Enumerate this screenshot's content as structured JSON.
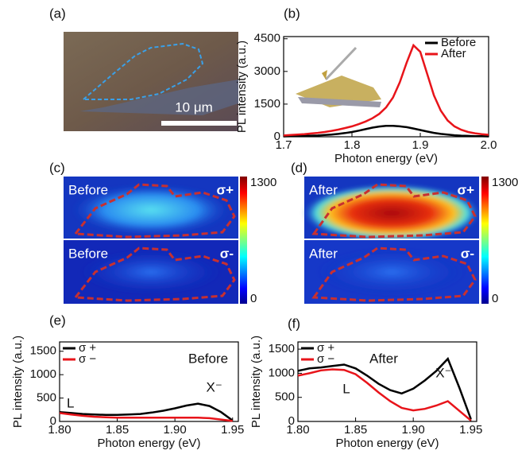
{
  "panel_labels": [
    "(a)",
    "(b)",
    "(c)",
    "(d)",
    "(e)",
    "(f)"
  ],
  "micrograph": {
    "scale_label": "10 μm"
  },
  "maps": [
    {
      "top_label": "Before",
      "top_pol": "σ+",
      "bottom_label": "Before",
      "bottom_pol": "σ-",
      "clim": [
        0,
        1300
      ],
      "cticks": [
        0,
        1300
      ]
    },
    {
      "top_label": "After",
      "top_pol": "σ+",
      "bottom_label": "After",
      "bottom_pol": "σ-",
      "clim": [
        0,
        1300
      ],
      "cticks": [
        0,
        1300
      ]
    }
  ],
  "chart_data": [
    {
      "type": "line",
      "xlabel": "Photon energy (eV)",
      "ylabel": "PL intensity (a.u.)",
      "legend": "upper right",
      "x": [
        1.7,
        1.71,
        1.72,
        1.73,
        1.74,
        1.75,
        1.76,
        1.77,
        1.78,
        1.79,
        1.8,
        1.81,
        1.82,
        1.83,
        1.84,
        1.85,
        1.86,
        1.87,
        1.88,
        1.89,
        1.9,
        1.91,
        1.92,
        1.93,
        1.94,
        1.95,
        1.96,
        1.97,
        1.98,
        1.99,
        2.0
      ],
      "series": [
        {
          "name": "Before",
          "color": "#000000",
          "values": [
            20,
            25,
            30,
            40,
            50,
            60,
            80,
            100,
            130,
            170,
            220,
            280,
            350,
            420,
            470,
            500,
            500,
            480,
            440,
            380,
            310,
            240,
            180,
            130,
            100,
            70,
            50,
            40,
            30,
            25,
            20
          ]
        },
        {
          "name": "After",
          "color": "#e8141a",
          "values": [
            60,
            80,
            100,
            120,
            150,
            180,
            220,
            270,
            330,
            400,
            480,
            580,
            700,
            850,
            1050,
            1350,
            1800,
            2500,
            3400,
            4200,
            3900,
            2900,
            1900,
            1200,
            750,
            480,
            320,
            220,
            160,
            120,
            90
          ]
        }
      ],
      "xlim": [
        1.7,
        2.0
      ],
      "xticks": [
        1.7,
        1.8,
        1.9,
        {
          "value": 2.0,
          "label": "2.0"
        }
      ],
      "ylim": [
        0,
        4600
      ],
      "yticks": [
        0,
        1500,
        3000,
        4500
      ]
    },
    {
      "type": "line",
      "xlabel": "Photon energy (eV)",
      "ylabel": "PL intensity (a.u.)",
      "legend": "upper left",
      "annotations": [
        "Before",
        "L",
        "X⁻"
      ],
      "x": [
        1.8,
        1.81,
        1.82,
        1.83,
        1.84,
        1.85,
        1.86,
        1.87,
        1.88,
        1.89,
        1.9,
        1.91,
        1.92,
        1.93,
        1.94,
        1.95
      ],
      "series": [
        {
          "name": "σ +",
          "color": "#000000",
          "values": [
            200,
            180,
            160,
            150,
            140,
            140,
            150,
            160,
            190,
            230,
            280,
            340,
            380,
            330,
            200,
            20
          ]
        },
        {
          "name": "σ −",
          "color": "#e8141a",
          "values": [
            180,
            150,
            120,
            100,
            90,
            80,
            80,
            80,
            80,
            80,
            80,
            80,
            80,
            70,
            40,
            10
          ]
        }
      ],
      "xlim": [
        1.8,
        1.955
      ],
      "xticks": [
        {
          "value": 1.8,
          "label": "1.80"
        },
        1.85,
        {
          "value": 1.9,
          "label": "1.90"
        },
        1.95
      ],
      "ylim": [
        0,
        1700
      ],
      "yticks": [
        0,
        500,
        1000,
        1500
      ]
    },
    {
      "type": "line",
      "xlabel": "Photon energy (eV)",
      "ylabel": "PL intensity (a.u.)",
      "legend": "upper left",
      "annotations": [
        "After",
        "L",
        "X⁻"
      ],
      "x": [
        1.8,
        1.81,
        1.82,
        1.83,
        1.84,
        1.85,
        1.86,
        1.87,
        1.88,
        1.89,
        1.9,
        1.91,
        1.92,
        1.93,
        1.94,
        1.95
      ],
      "series": [
        {
          "name": "σ +",
          "color": "#000000",
          "values": [
            1050,
            1100,
            1120,
            1150,
            1180,
            1100,
            950,
            780,
            650,
            580,
            680,
            850,
            1050,
            1300,
            700,
            50
          ]
        },
        {
          "name": "σ −",
          "color": "#e8141a",
          "values": [
            950,
            1000,
            1060,
            1080,
            1070,
            980,
            800,
            600,
            420,
            280,
            230,
            260,
            330,
            420,
            220,
            20
          ]
        }
      ],
      "xlim": [
        1.8,
        1.955
      ],
      "xticks": [
        {
          "value": 1.8,
          "label": "1.80"
        },
        1.85,
        {
          "value": 1.9,
          "label": "1.90"
        },
        1.95
      ],
      "ylim": [
        0,
        1650
      ],
      "yticks": [
        0,
        500,
        1000,
        1500
      ]
    }
  ]
}
